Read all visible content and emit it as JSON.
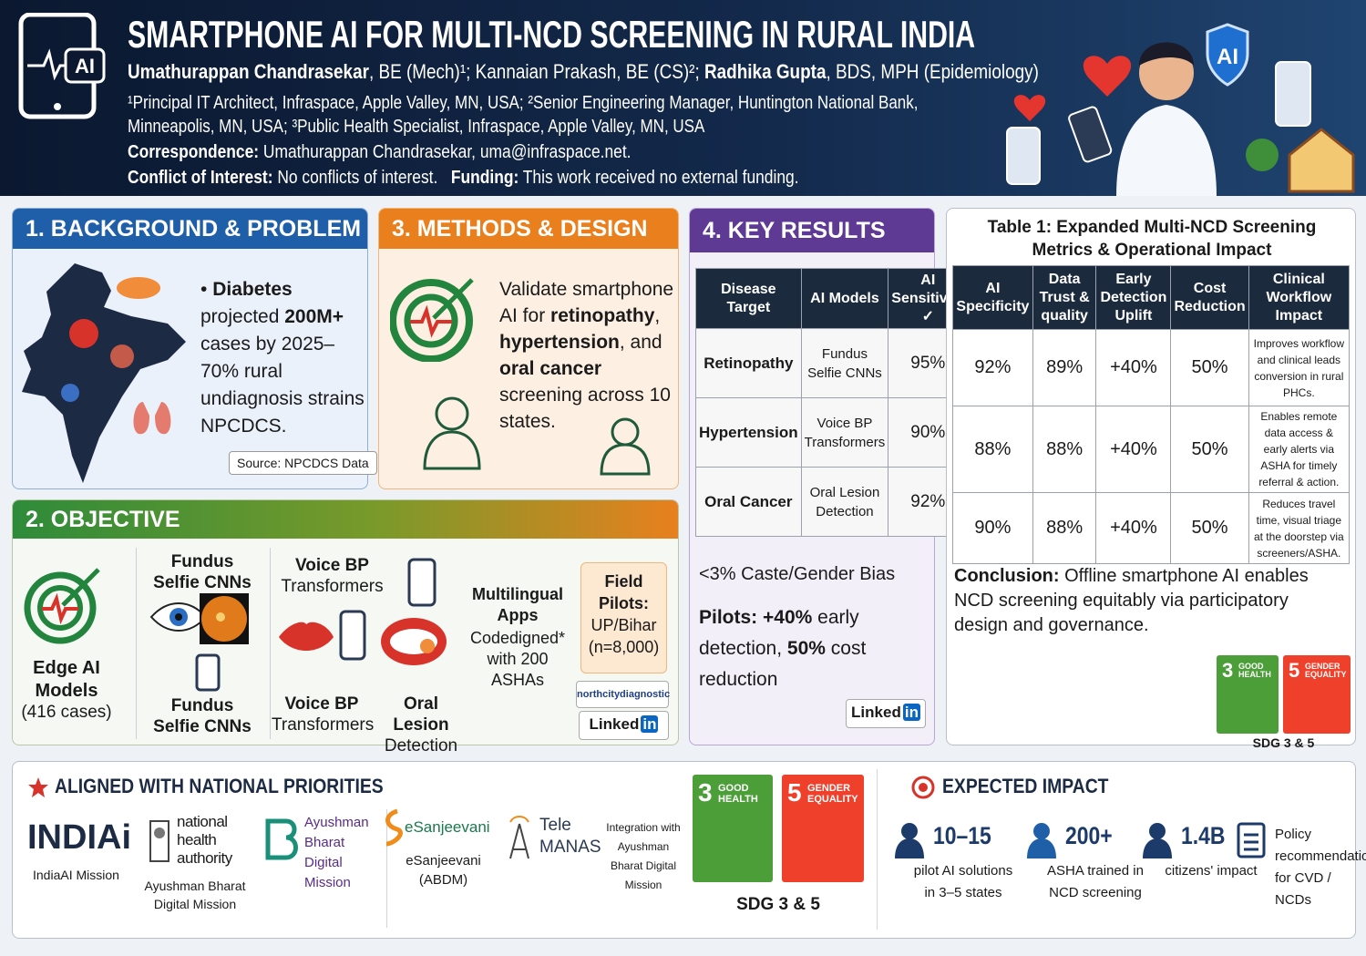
{
  "header": {
    "logo_text": "AI",
    "title": "SMARTPHONE AI FOR MULTI-NCD SCREENING IN RURAL INDIA",
    "authors": [
      "Umathurappan Chandrasekar",
      ", BE (Mech)¹; Kannaian Prakash, BE (CS)²; ",
      "Radhika Gupta",
      ", BDS, MPH (Epidemiology)"
    ],
    "affiliations": "¹Principal IT Architect, Infraspace, Apple Valley, MN, USA; ²Senior Engineering Manager, Huntington National Bank, Minneapolis, MN, USA; ³Public Health Specialist, Infraspace, Apple Valley, MN, USA",
    "correspondence": {
      "label": "Correspondence:",
      "text": "Umathurappan Chandrasekar, uma@infraspace.net."
    },
    "conflict": {
      "label": "Conflict of Interest:",
      "text": "No conflicts of interest."
    },
    "funding": {
      "label": "Funding:",
      "text": "This work received no external funding."
    },
    "badge": "AI"
  },
  "background": {
    "title": "1. BACKGROUND & PROBLEM",
    "bullet": [
      "Diabetes",
      " projected ",
      "200M+",
      " cases by 2025–70% rural undiagnosis strains NPCDCS."
    ],
    "source": "Source: NPCDCS Data"
  },
  "methods": {
    "title": "3. METHODS & DESIGN",
    "text": [
      "Validate smartphone AI for ",
      "retinopathy",
      ", ",
      "hypertension",
      ", and ",
      "oral cancer",
      " screening across 10 states."
    ]
  },
  "objective": {
    "title": "2. OBJECTIVE",
    "edge": {
      "title": "Edge AI Models",
      "cases": "(416 cases)"
    },
    "fundus_top": "Fundus Selfie CNNs",
    "fundus_bottom": "Fundus Selfie CNNs",
    "voice_top": [
      "Voice BP",
      "Transformers"
    ],
    "voice_bottom": [
      "Voice BP",
      "Transformers"
    ],
    "oral": [
      "Oral Lesion",
      "Detection"
    ],
    "apps": {
      "title": "Multilingual Apps",
      "text": "Codedigned* with 200 ASHAs"
    },
    "pilots": {
      "title": "Field Pilots:",
      "text": "UP/Bihar (n=8,000)"
    },
    "partner": "northcitydiagnostic",
    "linkedin": [
      "Linked",
      "in"
    ]
  },
  "results": {
    "title": "4. KEY RESULTS",
    "table": {
      "headers": [
        "Disease Target",
        "AI Models",
        "AI Sensitivity ✓"
      ],
      "rows": [
        [
          "Retinopathy",
          "Fundus Selfie CNNs",
          "95%"
        ],
        [
          "Hypertension",
          "Voice BP Transformers",
          "90%"
        ],
        [
          "Oral Cancer",
          "Oral Lesion Detection",
          "92%"
        ]
      ]
    },
    "bias": "<3% Caste/Gender Bias",
    "pilots": [
      "Pilots: +40%",
      " early detection, ",
      "50%",
      " cost reduction"
    ],
    "linkedin": [
      "Linked",
      "in"
    ]
  },
  "metrics": {
    "title": "Table 1: Expanded Multi-NCD Screening Metrics & Operational Impact",
    "headers": [
      "AI Specificity",
      "Data Trust & quality",
      "Early Detection Uplift",
      "Cost Reduction",
      "Clinical Workflow Impact"
    ],
    "rows": [
      [
        "92%",
        "89%",
        "+40%",
        "50%",
        "Improves workflow and clinical leads conversion in rural PHCs."
      ],
      [
        "88%",
        "88%",
        "+40%",
        "50%",
        "Enables remote data access & early alerts via ASHA for timely referral & action."
      ],
      [
        "90%",
        "88%",
        "+40%",
        "50%",
        "Reduces travel time, visual triage at the doorstep via screeners/ASHA."
      ]
    ],
    "conclusion": {
      "label": "Conclusion:",
      "text": "Offline smartphone AI enables NCD screening equitably via participatory design and governance."
    },
    "sdg": [
      {
        "number": "3",
        "label": "GOOD HEALTH"
      },
      {
        "number": "5",
        "label": "GENDER EQUALITY"
      }
    ],
    "sdg_caption": "SDG 3 & 5"
  },
  "priorities": {
    "title": "ALIGNED WITH NATIONAL PRIORITIES",
    "indiaai": {
      "logo": "INDIAi",
      "caption": "IndiaAI Mission"
    },
    "nha": {
      "logo": "national health authority",
      "caption": "Ayushman Bharat Digital Mission"
    },
    "abdm": "Ayushman Bharat Digital Mission",
    "esanjeevani": {
      "logo": "eSanjeevani",
      "caption": "eSanjeevani (ABDM)"
    },
    "telemanas": "Tele MANAS",
    "integration": "Integration with Ayushman Bharat Digital Mission",
    "sdg": [
      {
        "number": "3",
        "label": "GOOD HEALTH"
      },
      {
        "number": "5",
        "label": "GENDER EQUALITY"
      }
    ],
    "sdg_caption": "SDG 3 & 5"
  },
  "impact": {
    "title": "EXPECTED IMPACT",
    "items": [
      {
        "value": "10–15",
        "label": "pilot AI solutions in 3–5 states"
      },
      {
        "value": "200+",
        "label": "ASHA trained in NCD screening"
      },
      {
        "value": "1.4B",
        "label": "citizens' impact"
      },
      {
        "label": "Policy recommendations for CVD / NCDs"
      }
    ]
  }
}
